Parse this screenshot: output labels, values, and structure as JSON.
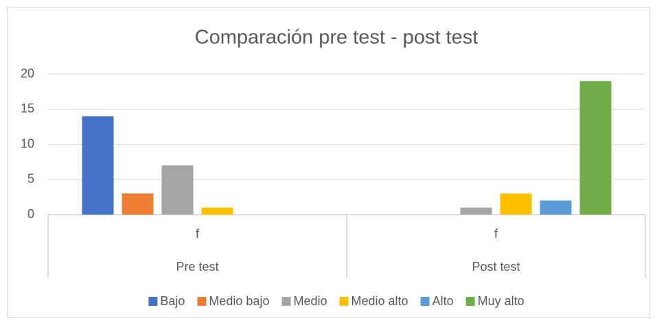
{
  "chart_data": {
    "type": "bar",
    "title": "Comparación pre test - post test",
    "categories": [
      "f",
      "f"
    ],
    "groups": [
      "Pre test",
      "Post test"
    ],
    "series": [
      {
        "name": "Bajo",
        "color": "#4472c4",
        "values": [
          14,
          0
        ]
      },
      {
        "name": "Medio bajo",
        "color": "#ed7d31",
        "values": [
          3,
          0
        ]
      },
      {
        "name": "Medio",
        "color": "#a5a5a5",
        "values": [
          7,
          1
        ]
      },
      {
        "name": "Medio alto",
        "color": "#ffc000",
        "values": [
          1,
          3
        ]
      },
      {
        "name": "Alto",
        "color": "#5b9bd5",
        "values": [
          0,
          2
        ]
      },
      {
        "name": "Muy alto",
        "color": "#70ad47",
        "values": [
          0,
          19
        ]
      }
    ],
    "ylim": [
      0,
      20
    ],
    "yticks": [
      0,
      5,
      10,
      15,
      20
    ],
    "grid": true,
    "legend": "bottom"
  }
}
